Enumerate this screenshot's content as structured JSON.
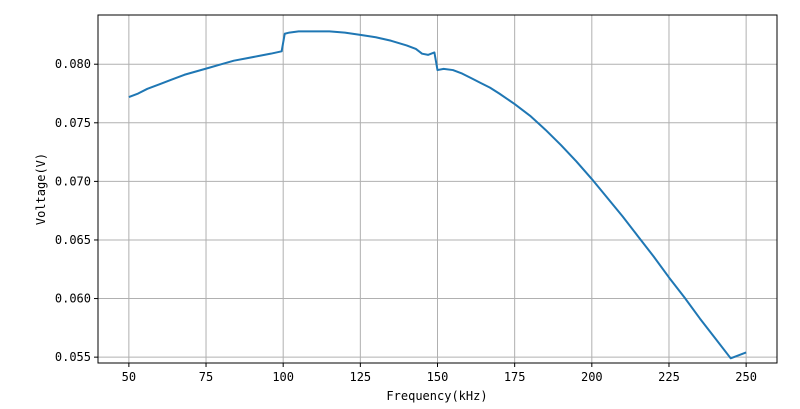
{
  "chart_data": {
    "type": "line",
    "title": "",
    "xlabel": "Frequency(kHz)",
    "ylabel": "Voltage(V)",
    "xlim": [
      40,
      260
    ],
    "ylim": [
      0.0545,
      0.0842
    ],
    "xticks": [
      50,
      75,
      100,
      125,
      150,
      175,
      200,
      225,
      250
    ],
    "xtick_labels": [
      "50",
      "75",
      "100",
      "125",
      "150",
      "175",
      "200",
      "225",
      "250"
    ],
    "yticks": [
      0.055,
      0.06,
      0.065,
      0.07,
      0.075,
      0.08
    ],
    "ytick_labels": [
      "0.055",
      "0.060",
      "0.065",
      "0.070",
      "0.075",
      "0.080"
    ],
    "grid": true,
    "color": "#1f77b4",
    "series": [
      {
        "x": [
          50,
          53,
          56,
          60,
          64,
          68,
          72,
          76,
          80,
          84,
          88,
          92,
          96,
          99.5,
          100.5,
          102,
          105,
          110,
          115,
          120,
          125,
          130,
          135,
          140,
          143,
          145,
          147,
          149,
          150,
          152,
          155,
          158,
          161,
          164,
          167,
          170,
          175,
          180,
          185,
          190,
          195,
          200,
          205,
          210,
          215,
          220,
          225,
          230,
          235,
          240,
          245,
          250
        ],
        "y": [
          0.0772,
          0.0775,
          0.0779,
          0.0783,
          0.0787,
          0.0791,
          0.0794,
          0.0797,
          0.08,
          0.0803,
          0.0805,
          0.0807,
          0.0809,
          0.0811,
          0.0826,
          0.0827,
          0.0828,
          0.0828,
          0.0828,
          0.0827,
          0.0825,
          0.0823,
          0.082,
          0.0816,
          0.0813,
          0.0809,
          0.0808,
          0.081,
          0.0795,
          0.0796,
          0.0795,
          0.0792,
          0.0788,
          0.0784,
          0.078,
          0.0775,
          0.0766,
          0.0756,
          0.0744,
          0.0731,
          0.0717,
          0.0702,
          0.0686,
          0.067,
          0.0653,
          0.0636,
          0.0618,
          0.0601,
          0.0583,
          0.0566,
          0.0549,
          0.0554
        ]
      }
    ]
  }
}
